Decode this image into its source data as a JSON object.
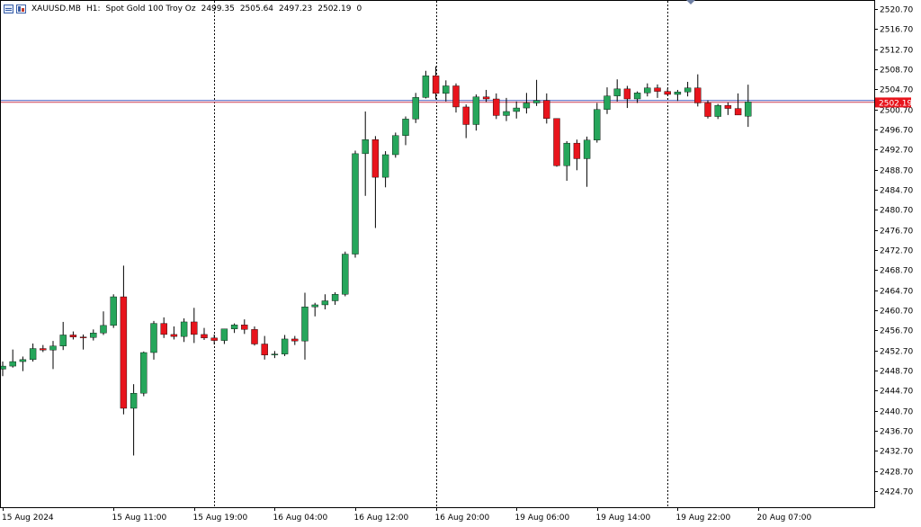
{
  "header": {
    "symbol": "XAUUSD.MB",
    "timeframe": "H1:",
    "description": "Spot Gold 100 Troy Oz",
    "open": "2499.35",
    "high": "2505.64",
    "low": "2497.23",
    "close": "2502.19",
    "volume": "0"
  },
  "chart_data": {
    "type": "candlestick",
    "ylim": [
      2421.5,
      2522.5
    ],
    "y_ticks": [
      2424.7,
      2428.7,
      2432.7,
      2436.7,
      2440.7,
      2444.7,
      2448.7,
      2452.7,
      2456.7,
      2460.7,
      2464.7,
      2468.7,
      2472.7,
      2476.7,
      2480.7,
      2484.7,
      2488.7,
      2492.7,
      2496.7,
      2500.7,
      2504.7,
      2508.7,
      2512.7,
      2516.7,
      2520.7
    ],
    "x_labels": [
      "15 Aug 2024",
      "15 Aug 11:00",
      "15 Aug 19:00",
      "16 Aug 04:00",
      "16 Aug 12:00",
      "16 Aug 20:00",
      "19 Aug 06:00",
      "19 Aug 14:00",
      "19 Aug 22:00",
      "20 Aug 07:00"
    ],
    "x_label_bars": [
      0,
      11,
      19,
      27,
      35,
      43,
      51,
      59,
      67,
      75
    ],
    "period_separator_bars": [
      21,
      43,
      66
    ],
    "current_price": "2502.19",
    "current_price_value": 2502.19,
    "bid_line_value": 2502.5,
    "colors": {
      "bull": "#26a65b",
      "bear": "#e8141c",
      "wick": "#000000",
      "grid": "#000000",
      "bid_line": "#d4586a",
      "ask_line": "#5d72c9",
      "price_tag": "#e8141c"
    },
    "candles": [
      {
        "o": 2449.0,
        "h": 2450.5,
        "l": 2447.6,
        "c": 2449.6
      },
      {
        "o": 2449.6,
        "h": 2452.9,
        "l": 2449.3,
        "c": 2450.5
      },
      {
        "o": 2450.5,
        "h": 2451.5,
        "l": 2448.6,
        "c": 2450.9
      },
      {
        "o": 2450.9,
        "h": 2454.1,
        "l": 2450.5,
        "c": 2453.1
      },
      {
        "o": 2453.1,
        "h": 2453.8,
        "l": 2452.4,
        "c": 2452.8
      },
      {
        "o": 2452.8,
        "h": 2454.6,
        "l": 2449.0,
        "c": 2453.6
      },
      {
        "o": 2453.6,
        "h": 2458.4,
        "l": 2452.8,
        "c": 2455.8
      },
      {
        "o": 2455.8,
        "h": 2456.5,
        "l": 2454.9,
        "c": 2455.4
      },
      {
        "o": 2455.4,
        "h": 2455.9,
        "l": 2452.9,
        "c": 2455.3
      },
      {
        "o": 2455.3,
        "h": 2456.9,
        "l": 2454.7,
        "c": 2456.2
      },
      {
        "o": 2456.2,
        "h": 2460.5,
        "l": 2455.8,
        "c": 2457.7
      },
      {
        "o": 2457.7,
        "h": 2463.9,
        "l": 2457.2,
        "c": 2463.4
      },
      {
        "o": 2463.4,
        "h": 2469.6,
        "l": 2440.0,
        "c": 2441.2
      },
      {
        "o": 2441.2,
        "h": 2446.0,
        "l": 2431.8,
        "c": 2444.2
      },
      {
        "o": 2444.2,
        "h": 2452.5,
        "l": 2443.6,
        "c": 2452.3
      },
      {
        "o": 2452.3,
        "h": 2458.6,
        "l": 2450.9,
        "c": 2458.1
      },
      {
        "o": 2458.1,
        "h": 2459.3,
        "l": 2455.2,
        "c": 2455.9
      },
      {
        "o": 2455.9,
        "h": 2457.5,
        "l": 2454.9,
        "c": 2455.5
      },
      {
        "o": 2455.5,
        "h": 2459.1,
        "l": 2454.4,
        "c": 2458.4
      },
      {
        "o": 2458.4,
        "h": 2461.2,
        "l": 2454.2,
        "c": 2455.9
      },
      {
        "o": 2455.9,
        "h": 2457.2,
        "l": 2454.8,
        "c": 2455.2
      },
      {
        "o": 2455.2,
        "h": 2455.9,
        "l": 2453.9,
        "c": 2454.7
      },
      {
        "o": 2454.7,
        "h": 2456.8,
        "l": 2454.0,
        "c": 2457.0
      },
      {
        "o": 2457.0,
        "h": 2458.1,
        "l": 2456.2,
        "c": 2457.8
      },
      {
        "o": 2457.8,
        "h": 2458.9,
        "l": 2456.0,
        "c": 2456.9
      },
      {
        "o": 2456.9,
        "h": 2457.5,
        "l": 2453.7,
        "c": 2454.0
      },
      {
        "o": 2454.0,
        "h": 2455.6,
        "l": 2450.9,
        "c": 2451.8
      },
      {
        "o": 2451.8,
        "h": 2452.6,
        "l": 2451.2,
        "c": 2452.0
      },
      {
        "o": 2452.0,
        "h": 2455.8,
        "l": 2451.6,
        "c": 2455.0
      },
      {
        "o": 2455.0,
        "h": 2455.6,
        "l": 2453.8,
        "c": 2454.6
      },
      {
        "o": 2454.6,
        "h": 2464.2,
        "l": 2450.9,
        "c": 2461.4
      },
      {
        "o": 2461.4,
        "h": 2462.2,
        "l": 2459.5,
        "c": 2461.8
      },
      {
        "o": 2461.8,
        "h": 2463.9,
        "l": 2460.9,
        "c": 2462.6
      },
      {
        "o": 2462.6,
        "h": 2464.3,
        "l": 2461.8,
        "c": 2463.9
      },
      {
        "o": 2463.9,
        "h": 2472.4,
        "l": 2463.5,
        "c": 2471.9
      },
      {
        "o": 2471.9,
        "h": 2492.5,
        "l": 2471.2,
        "c": 2491.9
      },
      {
        "o": 2491.9,
        "h": 2500.3,
        "l": 2483.5,
        "c": 2494.7
      },
      {
        "o": 2494.7,
        "h": 2495.4,
        "l": 2477.1,
        "c": 2487.2
      },
      {
        "o": 2487.2,
        "h": 2492.4,
        "l": 2485.2,
        "c": 2491.7
      },
      {
        "o": 2491.7,
        "h": 2496.1,
        "l": 2491.1,
        "c": 2495.5
      },
      {
        "o": 2495.5,
        "h": 2499.3,
        "l": 2493.6,
        "c": 2498.8
      },
      {
        "o": 2498.8,
        "h": 2504.0,
        "l": 2498.0,
        "c": 2503.1
      },
      {
        "o": 2503.1,
        "h": 2508.4,
        "l": 2502.9,
        "c": 2507.4
      },
      {
        "o": 2507.4,
        "h": 2509.3,
        "l": 2502.7,
        "c": 2503.9
      },
      {
        "o": 2503.9,
        "h": 2506.5,
        "l": 2502.3,
        "c": 2505.4
      },
      {
        "o": 2505.4,
        "h": 2505.9,
        "l": 2500.1,
        "c": 2501.2
      },
      {
        "o": 2501.2,
        "h": 2501.7,
        "l": 2495.0,
        "c": 2497.7
      },
      {
        "o": 2497.7,
        "h": 2503.7,
        "l": 2496.5,
        "c": 2503.2
      },
      {
        "o": 2503.2,
        "h": 2504.6,
        "l": 2502.2,
        "c": 2502.8
      },
      {
        "o": 2502.8,
        "h": 2503.9,
        "l": 2498.8,
        "c": 2499.5
      },
      {
        "o": 2499.5,
        "h": 2503.0,
        "l": 2498.4,
        "c": 2500.3
      },
      {
        "o": 2500.3,
        "h": 2502.3,
        "l": 2498.9,
        "c": 2501.0
      },
      {
        "o": 2501.0,
        "h": 2504.0,
        "l": 2499.9,
        "c": 2502.0
      },
      {
        "o": 2502.0,
        "h": 2506.6,
        "l": 2501.4,
        "c": 2502.5
      },
      {
        "o": 2502.5,
        "h": 2503.9,
        "l": 2497.9,
        "c": 2498.9
      },
      {
        "o": 2498.9,
        "h": 2498.7,
        "l": 2489.3,
        "c": 2489.5
      },
      {
        "o": 2489.5,
        "h": 2494.4,
        "l": 2486.5,
        "c": 2494.0
      },
      {
        "o": 2494.0,
        "h": 2494.7,
        "l": 2488.6,
        "c": 2490.9
      },
      {
        "o": 2490.9,
        "h": 2495.3,
        "l": 2485.3,
        "c": 2494.6
      },
      {
        "o": 2494.6,
        "h": 2502.0,
        "l": 2494.1,
        "c": 2500.7
      },
      {
        "o": 2500.7,
        "h": 2505.1,
        "l": 2499.8,
        "c": 2503.4
      },
      {
        "o": 2503.4,
        "h": 2506.7,
        "l": 2502.3,
        "c": 2504.8
      },
      {
        "o": 2504.8,
        "h": 2505.4,
        "l": 2501.0,
        "c": 2502.8
      },
      {
        "o": 2502.8,
        "h": 2504.3,
        "l": 2502.0,
        "c": 2504.0
      },
      {
        "o": 2504.0,
        "h": 2505.9,
        "l": 2503.3,
        "c": 2505.0
      },
      {
        "o": 2505.0,
        "h": 2505.7,
        "l": 2503.0,
        "c": 2504.3
      },
      {
        "o": 2504.3,
        "h": 2504.9,
        "l": 2503.5,
        "c": 2503.7
      },
      {
        "o": 2503.7,
        "h": 2504.6,
        "l": 2502.4,
        "c": 2504.2
      },
      {
        "o": 2504.2,
        "h": 2506.2,
        "l": 2503.3,
        "c": 2505.0
      },
      {
        "o": 2505.0,
        "h": 2507.7,
        "l": 2501.3,
        "c": 2502.0
      },
      {
        "o": 2502.0,
        "h": 2502.5,
        "l": 2498.9,
        "c": 2499.3
      },
      {
        "o": 2499.3,
        "h": 2501.8,
        "l": 2498.8,
        "c": 2501.5
      },
      {
        "o": 2501.5,
        "h": 2502.1,
        "l": 2499.6,
        "c": 2500.9
      },
      {
        "o": 2500.9,
        "h": 2503.9,
        "l": 2499.8,
        "c": 2499.6
      },
      {
        "o": 2499.35,
        "h": 2505.64,
        "l": 2497.23,
        "c": 2502.19
      }
    ]
  }
}
